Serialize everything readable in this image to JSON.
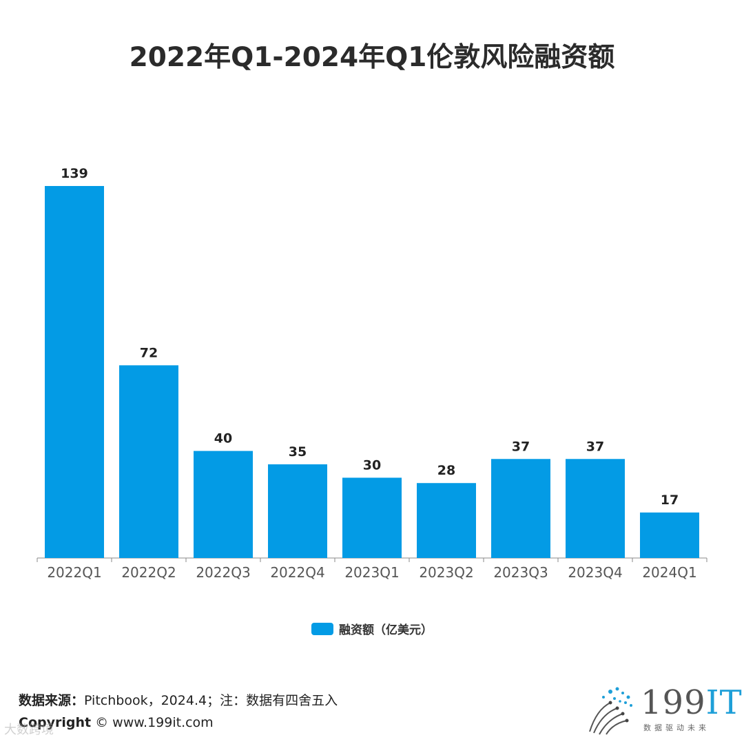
{
  "chart_data": {
    "type": "bar",
    "title": "2022年Q1-2024年Q1伦敦风险融资额",
    "categories": [
      "2022Q1",
      "2022Q2",
      "2022Q3",
      "2022Q4",
      "2023Q1",
      "2023Q2",
      "2023Q3",
      "2023Q4",
      "2024Q1"
    ],
    "series": [
      {
        "name": "融资额（亿美元）",
        "values": [
          139,
          72,
          40,
          35,
          30,
          28,
          37,
          37,
          17
        ]
      }
    ],
    "ylim": [
      0,
      139
    ],
    "grid": false,
    "legend_position": "bottom",
    "color": "#039be5"
  },
  "footer": {
    "source_label": "数据来源：",
    "source_text": "Pitchbook，2024.4；注：数据有四舍五入",
    "copyright_label": "Copyright",
    "copyright_text": " © www.199it.com",
    "watermark": "大数跨境"
  },
  "logo": {
    "num": "199",
    "it": "IT",
    "tagline": "数据驱动未来"
  }
}
